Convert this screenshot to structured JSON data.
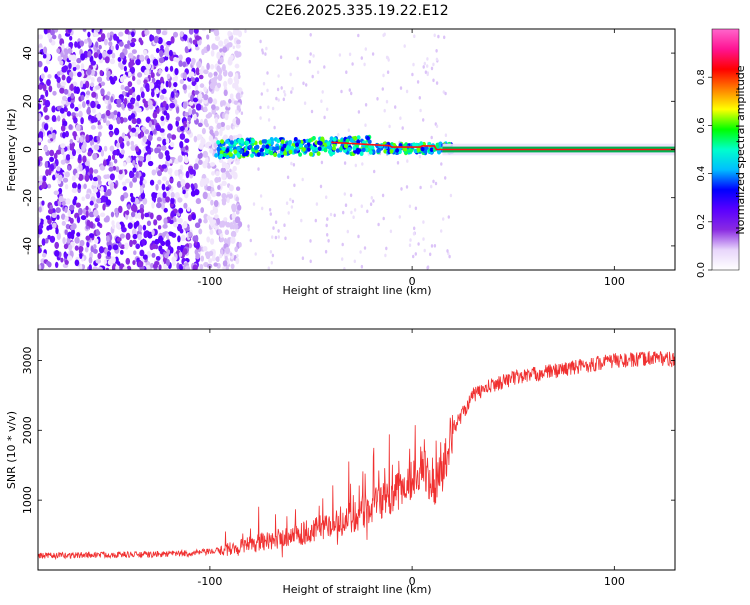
{
  "figure": {
    "title": "C2E6.2025.335.19.22.E12"
  },
  "chart_data": [
    {
      "type": "heatmap",
      "xlabel": "Height of straight line (km)",
      "ylabel": "Frequency (Hz)",
      "xlim": [
        -185,
        130
      ],
      "ylim": [
        -50,
        50
      ],
      "x_ticks": [
        -100,
        0,
        100
      ],
      "y_ticks": [
        -40,
        -20,
        0,
        20,
        40
      ],
      "colorbar": {
        "label": "Normalized spectral amplitude",
        "range": [
          0,
          1
        ],
        "ticks": [
          "0.0",
          "0.2",
          "0.4",
          "0.6",
          "0.8"
        ],
        "tick_values": [
          0.0,
          0.2,
          0.4,
          0.6,
          0.8
        ],
        "colormap": [
          "#ffffff",
          "#e8d6fb",
          "#8a2be2",
          "#5a00ff",
          "#0000ff",
          "#00bfff",
          "#00ffcc",
          "#00ff00",
          "#ffff00",
          "#ff8000",
          "#ff0000",
          "#ff1493",
          "#ff66cc"
        ]
      },
      "features": {
        "noise_region_x": [
          -185,
          -90
        ],
        "line_start_x": -97,
        "line_freq_hz": 0
      }
    },
    {
      "type": "line",
      "xlabel": "Height of straight line (km)",
      "ylabel": "SNR (10 * v/v)",
      "xlim": [
        -185,
        130
      ],
      "ylim": [
        0,
        3450
      ],
      "x_ticks": [
        -100,
        0,
        100
      ],
      "y_ticks": [
        1000,
        2000,
        3000
      ],
      "series": [
        {
          "color": "#f03030",
          "x": [
            -185,
            -170,
            -150,
            -130,
            -110,
            -100,
            -90,
            -80,
            -70,
            -60,
            -50,
            -40,
            -30,
            -20,
            -10,
            0,
            5,
            10,
            15,
            20,
            30,
            40,
            50,
            60,
            70,
            80,
            90,
            100,
            110,
            120,
            130
          ],
          "y": [
            200,
            210,
            220,
            220,
            240,
            260,
            300,
            380,
            420,
            500,
            550,
            650,
            750,
            900,
            1050,
            1300,
            1500,
            1200,
            1400,
            2000,
            2500,
            2650,
            2750,
            2800,
            2850,
            2900,
            2950,
            3000,
            3000,
            3050,
            3000
          ]
        }
      ]
    }
  ]
}
